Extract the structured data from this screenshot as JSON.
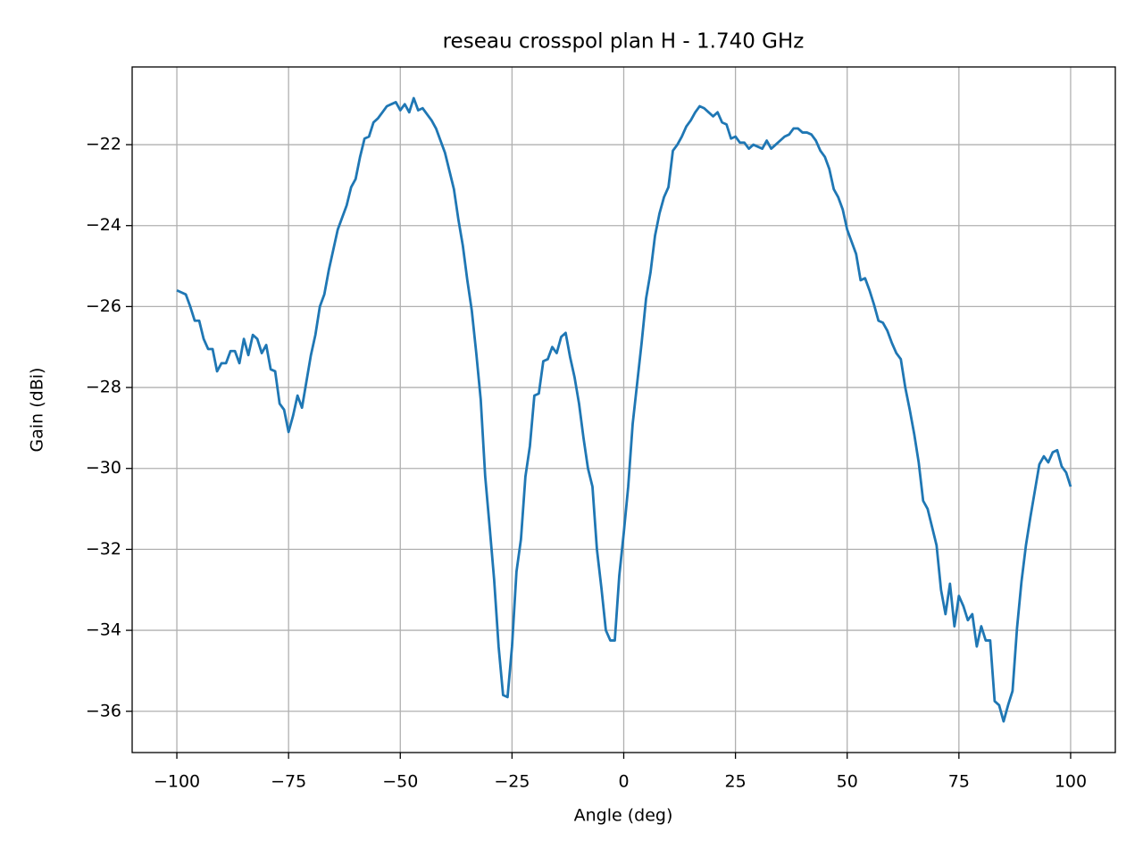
{
  "chart_data": {
    "type": "line",
    "title": "reseau crosspol plan H - 1.740 GHz",
    "x_label": "Angle (deg)",
    "y_label": "Gain (dBi)",
    "xlim": [
      -110,
      110
    ],
    "ylim": [
      -37.02,
      -20.08
    ],
    "xticks": [
      {
        "value": -100,
        "label": "−100"
      },
      {
        "value": -75,
        "label": "−75"
      },
      {
        "value": -50,
        "label": "−50"
      },
      {
        "value": -25,
        "label": "−25"
      },
      0,
      25,
      50,
      75,
      100
    ],
    "yticks": [
      {
        "value": -36,
        "label": "−36"
      },
      {
        "value": -34,
        "label": "−34"
      },
      {
        "value": -32,
        "label": "−32"
      },
      {
        "value": -30,
        "label": "−30"
      },
      {
        "value": -28,
        "label": "−28"
      },
      {
        "value": -26,
        "label": "−26"
      },
      {
        "value": -24,
        "label": "−24"
      },
      {
        "value": -22,
        "label": "−22"
      }
    ],
    "grid": true,
    "x": [
      -100,
      -99,
      -98,
      -97,
      -96,
      -95,
      -94,
      -93,
      -92,
      -91,
      -90,
      -89,
      -88,
      -87,
      -86,
      -85,
      -84,
      -83,
      -82,
      -81,
      -80,
      -79,
      -78,
      -77,
      -76,
      -75,
      -74,
      -73,
      -72,
      -71,
      -70,
      -69,
      -68,
      -67,
      -66,
      -65,
      -64,
      -63,
      -62,
      -61,
      -60,
      -59,
      -58,
      -57,
      -56,
      -55,
      -54,
      -53,
      -52,
      -51,
      -50,
      -49,
      -48,
      -47,
      -46,
      -45,
      -44,
      -43,
      -42,
      -41,
      -40,
      -39,
      -38,
      -37,
      -36,
      -35,
      -34,
      -33,
      -32,
      -31,
      -30,
      -29,
      -28,
      -27,
      -26,
      -25,
      -24,
      -23,
      -22,
      -21,
      -20,
      -19,
      -18,
      -17,
      -16,
      -15,
      -14,
      -13,
      -12,
      -11,
      -10,
      -9,
      -8,
      -7,
      -6,
      -5,
      -4,
      -3,
      -2,
      -1,
      0,
      1,
      2,
      3,
      4,
      5,
      6,
      7,
      8,
      9,
      10,
      11,
      12,
      13,
      14,
      15,
      16,
      17,
      18,
      19,
      20,
      21,
      22,
      23,
      24,
      25,
      26,
      27,
      28,
      29,
      30,
      31,
      32,
      33,
      34,
      35,
      36,
      37,
      38,
      39,
      40,
      41,
      42,
      43,
      44,
      45,
      46,
      47,
      48,
      49,
      50,
      51,
      52,
      53,
      54,
      55,
      56,
      57,
      58,
      59,
      60,
      61,
      62,
      63,
      64,
      65,
      66,
      67,
      68,
      69,
      70,
      71,
      72,
      73,
      74,
      75,
      76,
      77,
      78,
      79,
      80,
      81,
      82,
      83,
      84,
      85,
      86,
      87,
      88,
      89,
      90,
      91,
      92,
      93,
      94,
      95,
      96,
      97,
      98,
      99,
      100
    ],
    "series": [
      {
        "color": "#1f77b4",
        "values": [
          -25.6,
          -25.65,
          -25.7,
          -26.0,
          -26.35,
          -26.35,
          -26.8,
          -27.05,
          -27.05,
          -27.6,
          -27.4,
          -27.4,
          -27.1,
          -27.1,
          -27.4,
          -26.8,
          -27.2,
          -26.7,
          -26.8,
          -27.15,
          -26.95,
          -27.55,
          -27.6,
          -28.4,
          -28.55,
          -29.1,
          -28.7,
          -28.2,
          -28.5,
          -27.85,
          -27.2,
          -26.7,
          -26.0,
          -25.7,
          -25.1,
          -24.6,
          -24.1,
          -23.8,
          -23.5,
          -23.05,
          -22.85,
          -22.3,
          -21.85,
          -21.8,
          -21.45,
          -21.35,
          -21.2,
          -21.05,
          -21.0,
          -20.95,
          -21.15,
          -21.0,
          -21.2,
          -20.85,
          -21.15,
          -21.1,
          -21.25,
          -21.4,
          -21.6,
          -21.9,
          -22.2,
          -22.65,
          -23.1,
          -23.85,
          -24.5,
          -25.35,
          -26.1,
          -27.15,
          -28.3,
          -30.2,
          -31.45,
          -32.75,
          -34.4,
          -35.6,
          -35.65,
          -34.4,
          -32.55,
          -31.75,
          -30.2,
          -29.45,
          -28.2,
          -28.15,
          -27.35,
          -27.3,
          -27.0,
          -27.15,
          -26.75,
          -26.65,
          -27.25,
          -27.75,
          -28.4,
          -29.25,
          -30.0,
          -30.45,
          -32.0,
          -32.95,
          -34.0,
          -34.25,
          -34.25,
          -32.65,
          -31.6,
          -30.45,
          -28.9,
          -27.9,
          -26.9,
          -25.8,
          -25.15,
          -24.25,
          -23.7,
          -23.3,
          -23.05,
          -22.15,
          -22.0,
          -21.8,
          -21.55,
          -21.4,
          -21.2,
          -21.05,
          -21.1,
          -21.2,
          -21.3,
          -21.2,
          -21.45,
          -21.5,
          -21.85,
          -21.8,
          -21.95,
          -21.95,
          -22.1,
          -22.0,
          -22.05,
          -22.1,
          -21.9,
          -22.1,
          -22.0,
          -21.9,
          -21.8,
          -21.75,
          -21.6,
          -21.6,
          -21.7,
          -21.7,
          -21.75,
          -21.9,
          -22.15,
          -22.3,
          -22.6,
          -23.1,
          -23.3,
          -23.6,
          -24.1,
          -24.4,
          -24.7,
          -25.35,
          -25.3,
          -25.6,
          -25.95,
          -26.35,
          -26.4,
          -26.6,
          -26.9,
          -27.15,
          -27.3,
          -28.0,
          -28.55,
          -29.15,
          -29.85,
          -30.8,
          -31.0,
          -31.45,
          -31.9,
          -33.0,
          -33.6,
          -32.85,
          -33.9,
          -33.15,
          -33.4,
          -33.75,
          -33.6,
          -34.4,
          -33.9,
          -34.25,
          -34.25,
          -35.75,
          -35.85,
          -36.25,
          -35.85,
          -35.5,
          -33.95,
          -32.8,
          -31.9,
          -31.2,
          -30.55,
          -29.9,
          -29.7,
          -29.85,
          -29.6,
          -29.55,
          -29.95,
          -30.1,
          -30.45
        ]
      }
    ]
  }
}
